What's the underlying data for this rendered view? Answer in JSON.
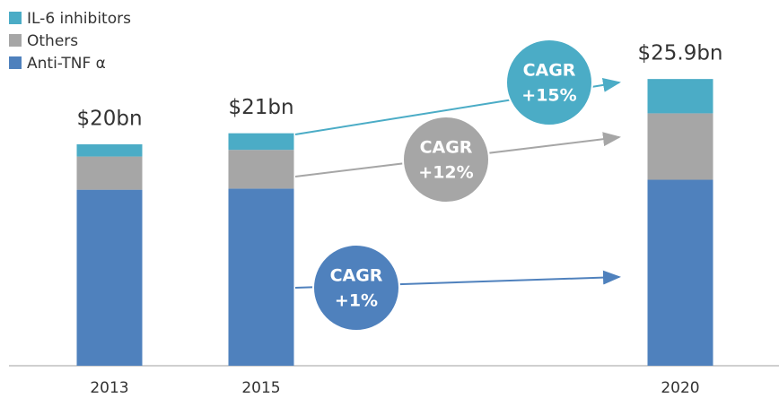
{
  "chart_data": {
    "type": "stacked_bar",
    "categories": [
      "2013",
      "2015",
      "2020"
    ],
    "series": [
      {
        "name": "Anti-TNF α",
        "color": "#4f81bd",
        "values": [
          15.9,
          16.0,
          16.8
        ]
      },
      {
        "name": "Others",
        "color": "#a6a6a6",
        "values": [
          3.0,
          3.5,
          6.0
        ]
      },
      {
        "name": "IL-6 inhibitors",
        "color": "#4bacc6",
        "values": [
          1.1,
          1.5,
          3.1
        ]
      }
    ],
    "totals": {
      "values": [
        20,
        21,
        25.9
      ],
      "value_labels": [
        "$20bn",
        "$21bn",
        "$25.9bn"
      ]
    },
    "annotations": [
      {
        "lines": [
          "CAGR",
          "+1%"
        ],
        "series": 0
      },
      {
        "lines": [
          "CAGR",
          "+12%"
        ],
        "series": 1
      },
      {
        "lines": [
          "CAGR",
          "+15%"
        ],
        "series": 2
      }
    ]
  }
}
